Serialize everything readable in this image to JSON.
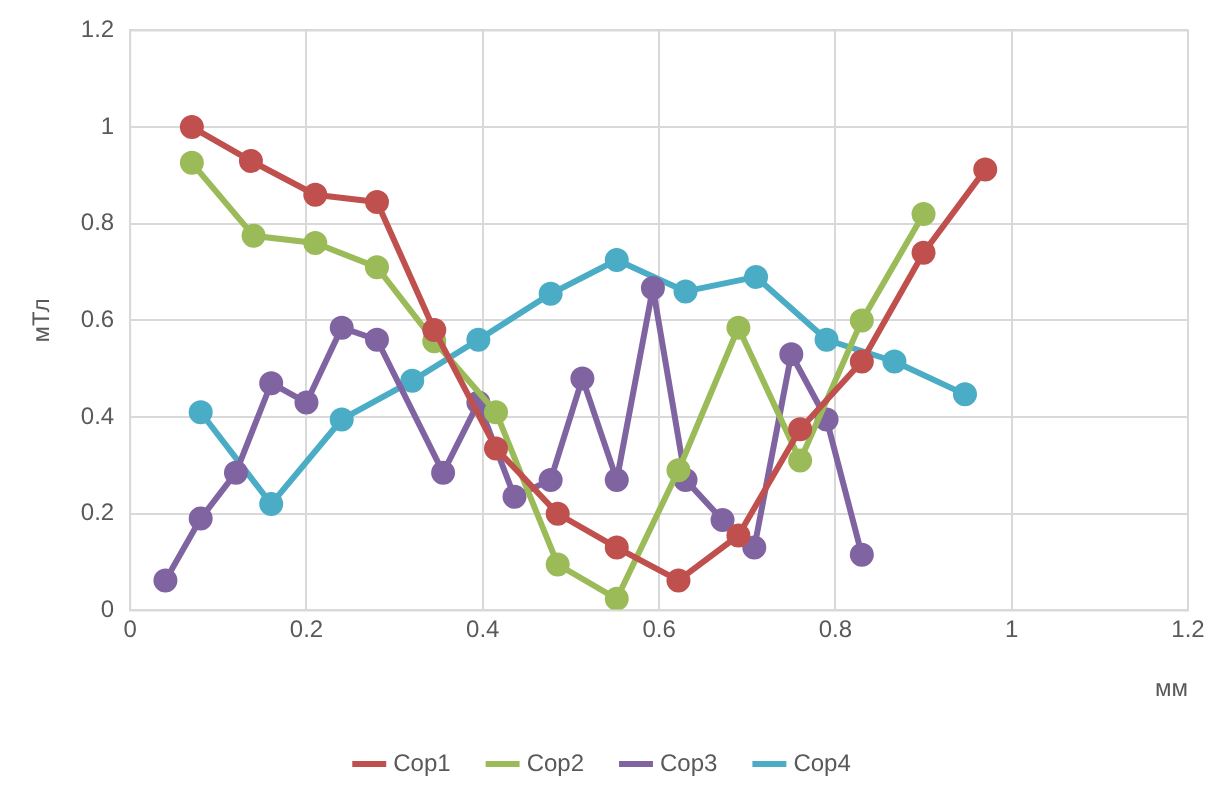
{
  "chart_data": {
    "type": "line",
    "xlabel": "мм",
    "ylabel": "мТл",
    "xlim": [
      0,
      1.2
    ],
    "xticks": [
      0,
      0.2,
      0.4,
      0.6,
      0.8,
      1,
      1.2
    ],
    "ylim": [
      0,
      1.2
    ],
    "yticks": [
      0,
      0.2,
      0.4,
      0.6,
      0.8,
      1,
      1.2
    ],
    "grid": true,
    "legend": "bottom",
    "marker": "circle",
    "line_style": "solid",
    "series": [
      {
        "name": "Cop1",
        "color": "#c0504d",
        "x": [
          0.07,
          0.137,
          0.21,
          0.28,
          0.345,
          0.415,
          0.485,
          0.552,
          0.622,
          0.69,
          0.76,
          0.83,
          0.9,
          0.97
        ],
        "values": [
          1.0,
          0.93,
          0.86,
          0.845,
          0.58,
          0.335,
          0.2,
          0.13,
          0.062,
          0.155,
          0.375,
          0.515,
          0.74,
          0.912
        ]
      },
      {
        "name": "Cop2",
        "color": "#9bbb59",
        "x": [
          0.07,
          0.14,
          0.21,
          0.28,
          0.345,
          0.415,
          0.485,
          0.552,
          0.622,
          0.69,
          0.76,
          0.83,
          0.9
        ],
        "values": [
          0.926,
          0.775,
          0.76,
          0.71,
          0.557,
          0.41,
          0.095,
          0.024,
          0.29,
          0.585,
          0.31,
          0.6,
          0.82
        ]
      },
      {
        "name": "Cop3",
        "color": "#8064a2",
        "x": [
          0.04,
          0.08,
          0.12,
          0.16,
          0.2,
          0.24,
          0.28,
          0.355,
          0.395,
          0.436,
          0.477,
          0.513,
          0.552,
          0.593,
          0.63,
          0.672,
          0.708,
          0.75,
          0.79,
          0.83
        ],
        "values": [
          0.062,
          0.19,
          0.285,
          0.47,
          0.43,
          0.585,
          0.56,
          0.285,
          0.43,
          0.235,
          0.27,
          0.48,
          0.27,
          0.667,
          0.27,
          0.187,
          0.13,
          0.53,
          0.395,
          0.115
        ]
      },
      {
        "name": "Cop4",
        "color": "#4bacc6",
        "x": [
          0.08,
          0.16,
          0.24,
          0.32,
          0.395,
          0.477,
          0.552,
          0.63,
          0.71,
          0.79,
          0.867,
          0.947
        ],
        "values": [
          0.41,
          0.22,
          0.395,
          0.475,
          0.56,
          0.655,
          0.725,
          0.66,
          0.69,
          0.56,
          0.515,
          0.447
        ]
      }
    ]
  }
}
